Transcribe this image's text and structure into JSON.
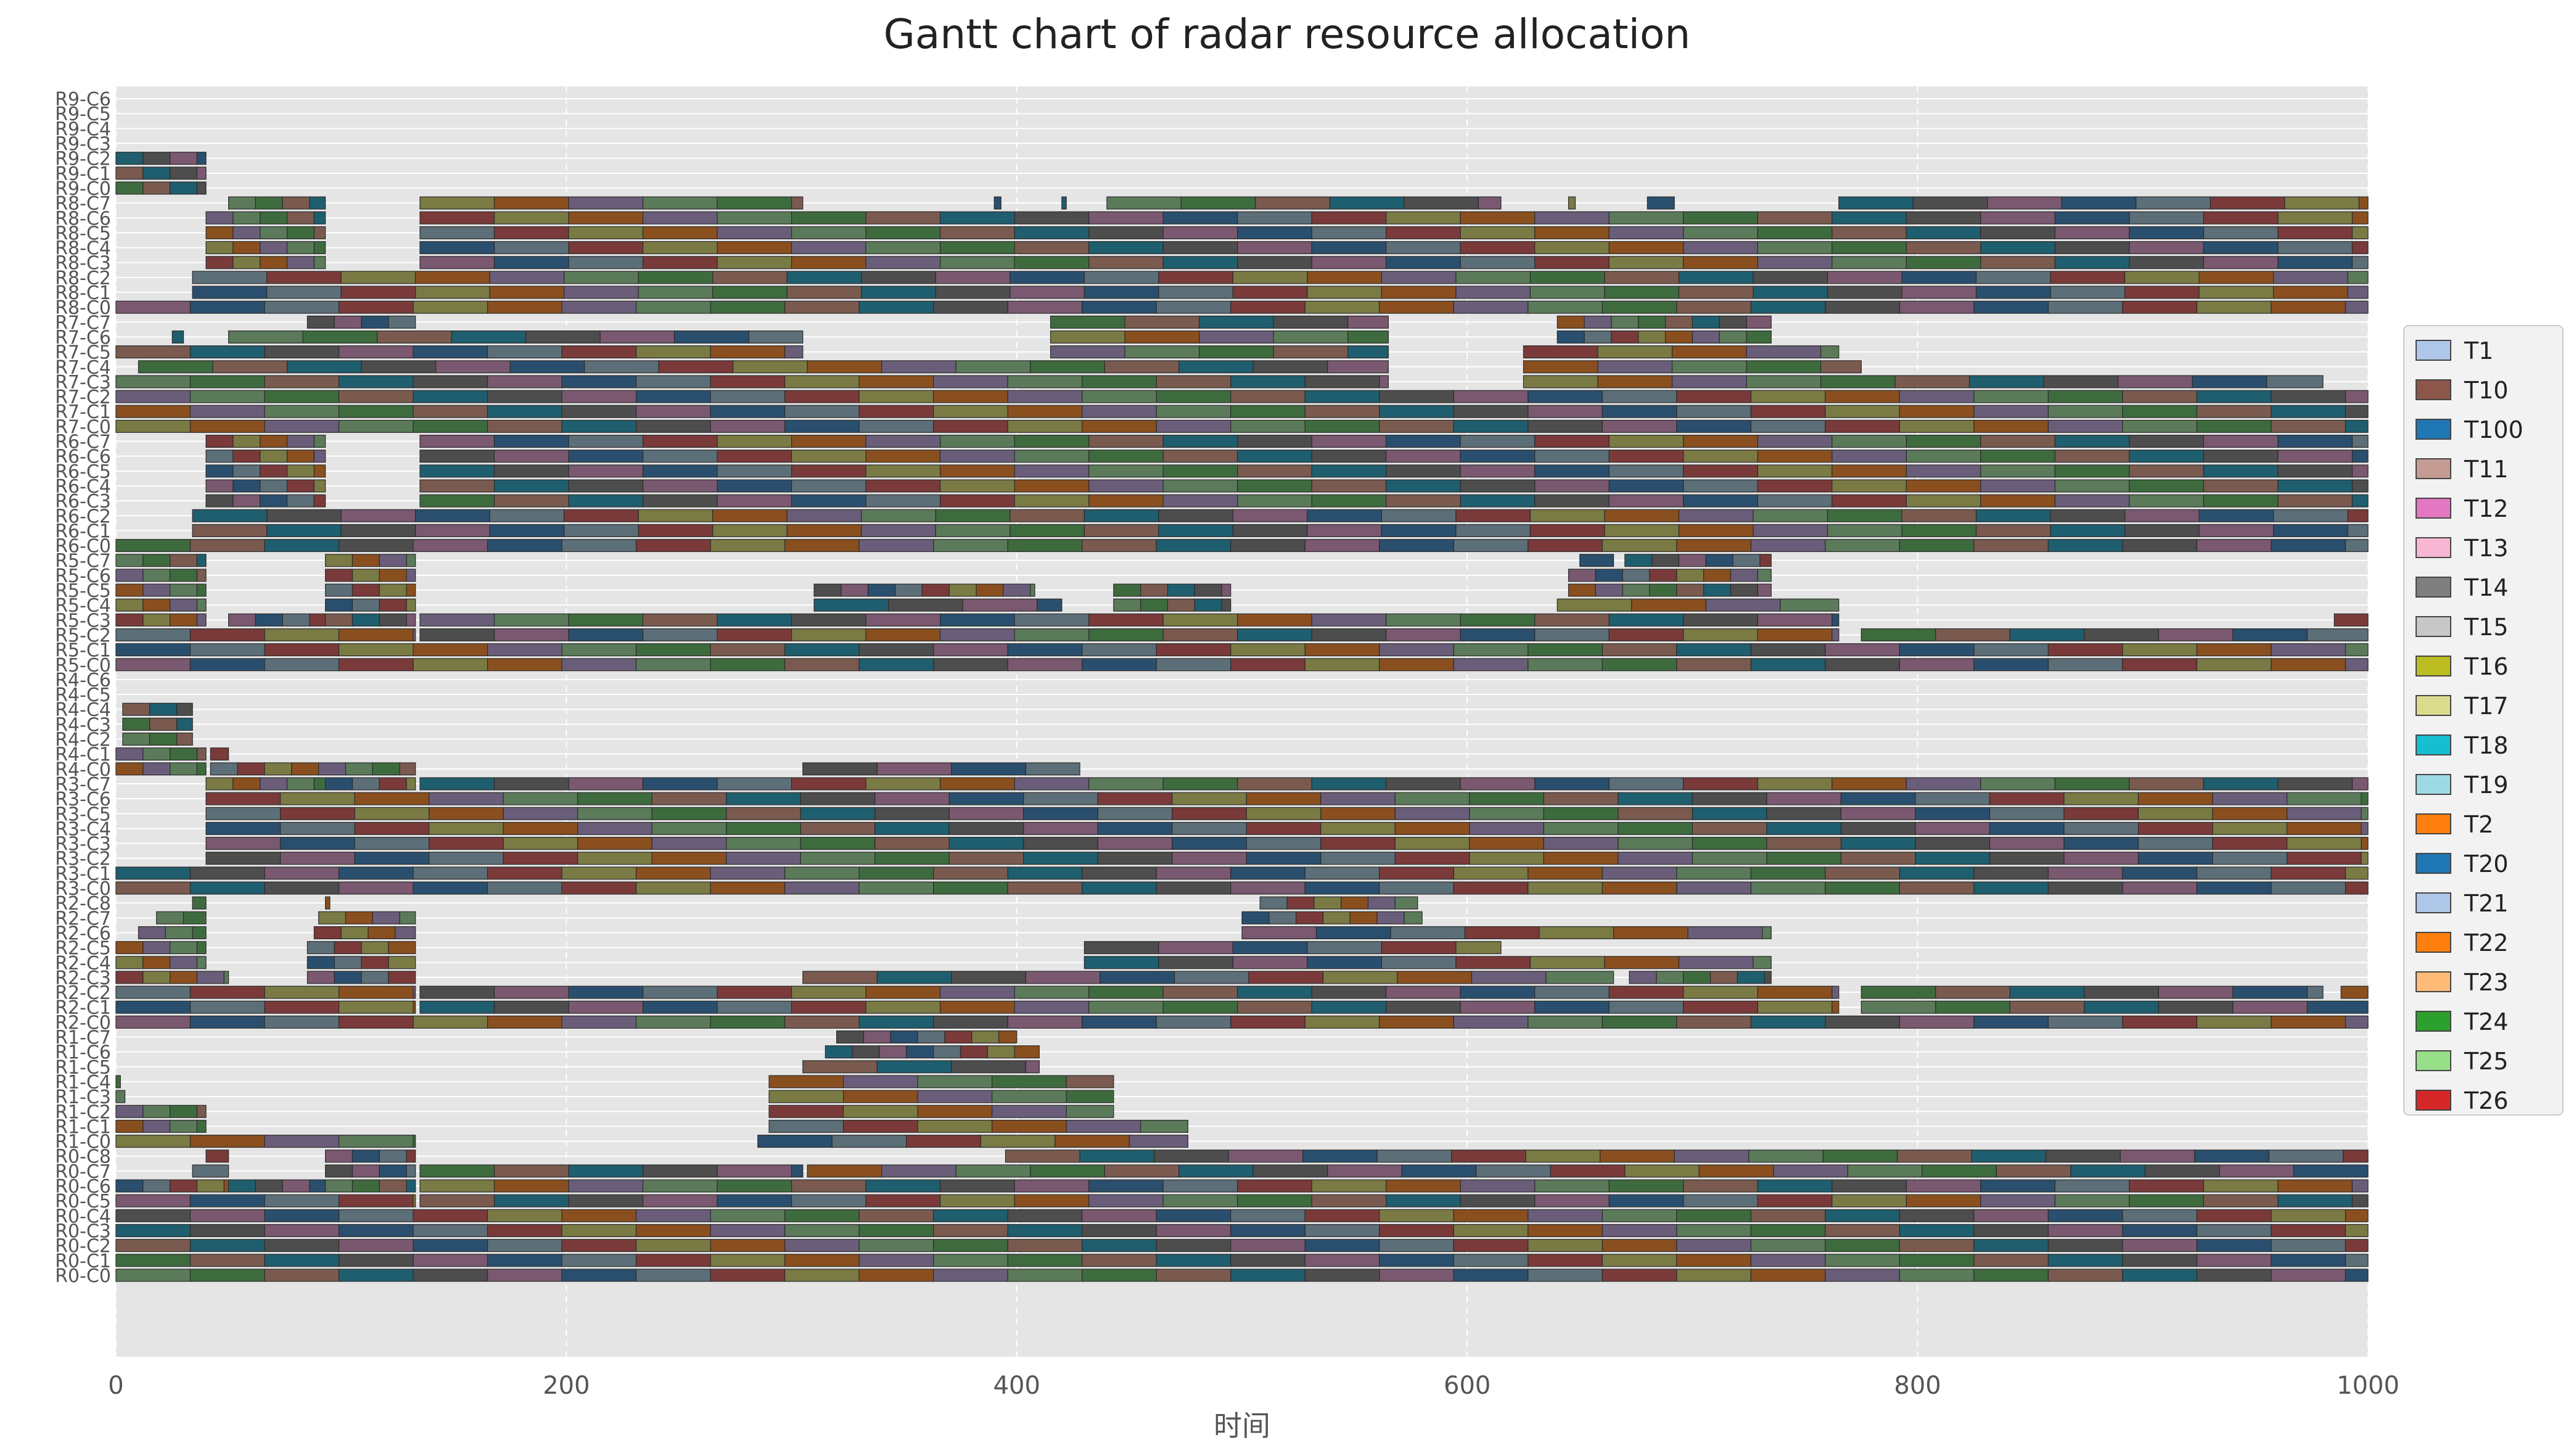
{
  "chart_data": {
    "type": "gantt",
    "title": "Gantt chart of radar resource allocation",
    "xlabel": "时间",
    "ylabel": "",
    "xlim": [
      0,
      1000
    ],
    "xticks": [
      0,
      200,
      400,
      600,
      800,
      1000
    ],
    "grid": true,
    "legend_position": "right",
    "radars": [
      {
        "name": "R0",
        "channels": 9
      },
      {
        "name": "R1",
        "channels": 8
      },
      {
        "name": "R2",
        "channels": 9
      },
      {
        "name": "R3",
        "channels": 8
      },
      {
        "name": "R4",
        "channels": 7
      },
      {
        "name": "R5",
        "channels": 8
      },
      {
        "name": "R6",
        "channels": 8
      },
      {
        "name": "R7",
        "channels": 8
      },
      {
        "name": "R8",
        "channels": 8
      },
      {
        "name": "R9",
        "channels": 7
      }
    ],
    "legend": [
      {
        "task": "T1",
        "color": "#aec7e8"
      },
      {
        "task": "T10",
        "color": "#8c564b"
      },
      {
        "task": "T100",
        "color": "#1f77b4"
      },
      {
        "task": "T11",
        "color": "#c49c94"
      },
      {
        "task": "T12",
        "color": "#e377c2"
      },
      {
        "task": "T13",
        "color": "#f7b6d2"
      },
      {
        "task": "T14",
        "color": "#7f7f7f"
      },
      {
        "task": "T15",
        "color": "#c7c7c7"
      },
      {
        "task": "T16",
        "color": "#bcbd22"
      },
      {
        "task": "T17",
        "color": "#dbdb8d"
      },
      {
        "task": "T18",
        "color": "#17becf"
      },
      {
        "task": "T19",
        "color": "#9edae5"
      },
      {
        "task": "T2",
        "color": "#ff7f0e"
      },
      {
        "task": "T20",
        "color": "#1f77b4"
      },
      {
        "task": "T21",
        "color": "#aec7e8"
      },
      {
        "task": "T22",
        "color": "#ff7f0e"
      },
      {
        "task": "T23",
        "color": "#ffbb78"
      },
      {
        "task": "T24",
        "color": "#2ca02c"
      },
      {
        "task": "T25",
        "color": "#98df8a"
      },
      {
        "task": "T26",
        "color": "#d62728"
      }
    ],
    "bar_palette": [
      "#5c6e78",
      "#7a5a4f",
      "#7a7a44",
      "#4d4d4d",
      "#6a5d7a",
      "#2a4f6e",
      "#3e6b3e",
      "#7a3a3a",
      "#1f5e6e",
      "#8a4f1f",
      "#7a5870",
      "#5b7a5a"
    ],
    "allocations": [
      {
        "row": "R0-C8",
        "segments": [
          [
            40,
            50
          ],
          [
            93,
            133
          ],
          [
            395,
            1000
          ]
        ]
      },
      {
        "row": "R0-C7",
        "segments": [
          [
            34,
            50
          ],
          [
            93,
            133
          ],
          [
            135,
            305
          ],
          [
            307,
            1000
          ]
        ]
      },
      {
        "row": "R0-C6",
        "segments": [
          [
            0,
            50
          ],
          [
            50,
            93
          ],
          [
            93,
            133
          ],
          [
            135,
            1000
          ]
        ]
      },
      {
        "row": "R0-C5",
        "segments": [
          [
            0,
            133
          ],
          [
            135,
            1000
          ]
        ]
      },
      {
        "row": "R0-C4",
        "segments": [
          [
            0,
            1000
          ]
        ]
      },
      {
        "row": "R0-C3",
        "segments": [
          [
            0,
            1000
          ]
        ]
      },
      {
        "row": "R0-C2",
        "segments": [
          [
            0,
            1000
          ]
        ]
      },
      {
        "row": "R0-C1",
        "segments": [
          [
            0,
            1000
          ]
        ]
      },
      {
        "row": "R0-C0",
        "segments": [
          [
            0,
            1000
          ]
        ]
      },
      {
        "row": "R1-C7",
        "segments": [
          [
            320,
            400
          ]
        ]
      },
      {
        "row": "R1-C6",
        "segments": [
          [
            315,
            410
          ]
        ]
      },
      {
        "row": "R1-C5",
        "segments": [
          [
            305,
            410
          ]
        ]
      },
      {
        "row": "R1-C4",
        "segments": [
          [
            0,
            2
          ],
          [
            290,
            443
          ]
        ]
      },
      {
        "row": "R1-C3",
        "segments": [
          [
            0,
            4
          ],
          [
            290,
            443
          ]
        ]
      },
      {
        "row": "R1-C2",
        "segments": [
          [
            0,
            40
          ],
          [
            290,
            443
          ]
        ]
      },
      {
        "row": "R1-C1",
        "segments": [
          [
            0,
            40
          ],
          [
            290,
            476
          ]
        ]
      },
      {
        "row": "R1-C0",
        "segments": [
          [
            0,
            133
          ],
          [
            285,
            476
          ]
        ]
      },
      {
        "row": "R2-C8",
        "segments": [
          [
            34,
            40
          ],
          [
            93,
            95
          ],
          [
            508,
            578
          ]
        ]
      },
      {
        "row": "R2-C7",
        "segments": [
          [
            18,
            40
          ],
          [
            90,
            133
          ],
          [
            500,
            580
          ]
        ]
      },
      {
        "row": "R2-C6",
        "segments": [
          [
            10,
            40
          ],
          [
            88,
            133
          ],
          [
            500,
            735
          ]
        ]
      },
      {
        "row": "R2-C5",
        "segments": [
          [
            0,
            40
          ],
          [
            85,
            133
          ],
          [
            430,
            615
          ]
        ]
      },
      {
        "row": "R2-C4",
        "segments": [
          [
            0,
            40
          ],
          [
            85,
            133
          ],
          [
            430,
            735
          ]
        ]
      },
      {
        "row": "R2-C3",
        "segments": [
          [
            0,
            50
          ],
          [
            85,
            133
          ],
          [
            305,
            665
          ],
          [
            672,
            735
          ]
        ]
      },
      {
        "row": "R2-C2",
        "segments": [
          [
            0,
            133
          ],
          [
            135,
            765
          ],
          [
            775,
            980
          ],
          [
            988,
            1000
          ]
        ]
      },
      {
        "row": "R2-C1",
        "segments": [
          [
            0,
            133
          ],
          [
            135,
            765
          ],
          [
            775,
            1000
          ]
        ]
      },
      {
        "row": "R2-C0",
        "segments": [
          [
            0,
            1000
          ]
        ]
      },
      {
        "row": "R3-C7",
        "segments": [
          [
            40,
            93
          ],
          [
            93,
            133
          ],
          [
            135,
            1000
          ]
        ]
      },
      {
        "row": "R3-C6",
        "segments": [
          [
            40,
            1000
          ]
        ]
      },
      {
        "row": "R3-C5",
        "segments": [
          [
            40,
            1000
          ]
        ]
      },
      {
        "row": "R3-C4",
        "segments": [
          [
            40,
            1000
          ]
        ]
      },
      {
        "row": "R3-C3",
        "segments": [
          [
            40,
            1000
          ]
        ]
      },
      {
        "row": "R3-C2",
        "segments": [
          [
            40,
            1000
          ]
        ]
      },
      {
        "row": "R3-C1",
        "segments": [
          [
            0,
            1000
          ]
        ]
      },
      {
        "row": "R3-C0",
        "segments": [
          [
            0,
            1000
          ]
        ]
      },
      {
        "row": "R4-C6",
        "segments": []
      },
      {
        "row": "R4-C5",
        "segments": []
      },
      {
        "row": "R4-C4",
        "segments": [
          [
            3,
            34
          ]
        ]
      },
      {
        "row": "R4-C3",
        "segments": [
          [
            3,
            34
          ]
        ]
      },
      {
        "row": "R4-C2",
        "segments": [
          [
            3,
            34
          ]
        ]
      },
      {
        "row": "R4-C1",
        "segments": [
          [
            0,
            40
          ],
          [
            42,
            50
          ]
        ]
      },
      {
        "row": "R4-C0",
        "segments": [
          [
            0,
            40
          ],
          [
            42,
            133
          ],
          [
            305,
            428
          ]
        ]
      },
      {
        "row": "R5-C7",
        "segments": [
          [
            0,
            40
          ],
          [
            93,
            133
          ],
          [
            650,
            665
          ],
          [
            670,
            735
          ]
        ]
      },
      {
        "row": "R5-C6",
        "segments": [
          [
            0,
            40
          ],
          [
            93,
            133
          ],
          [
            645,
            735
          ]
        ]
      },
      {
        "row": "R5-C5",
        "segments": [
          [
            0,
            40
          ],
          [
            93,
            133
          ],
          [
            310,
            408
          ],
          [
            443,
            495
          ],
          [
            645,
            735
          ]
        ]
      },
      {
        "row": "R5-C4",
        "segments": [
          [
            0,
            40
          ],
          [
            93,
            133
          ],
          [
            310,
            420
          ],
          [
            443,
            495
          ],
          [
            640,
            765
          ]
        ]
      },
      {
        "row": "R5-C3",
        "segments": [
          [
            0,
            40
          ],
          [
            50,
            93
          ],
          [
            93,
            133
          ],
          [
            135,
            765
          ],
          [
            985,
            1000
          ]
        ]
      },
      {
        "row": "R5-C2",
        "segments": [
          [
            0,
            133
          ],
          [
            135,
            765
          ],
          [
            775,
            1000
          ]
        ]
      },
      {
        "row": "R5-C1",
        "segments": [
          [
            0,
            1000
          ]
        ]
      },
      {
        "row": "R5-C0",
        "segments": [
          [
            0,
            1000
          ]
        ]
      },
      {
        "row": "R6-C7",
        "segments": [
          [
            40,
            93
          ],
          [
            135,
            1000
          ]
        ]
      },
      {
        "row": "R6-C6",
        "segments": [
          [
            40,
            93
          ],
          [
            135,
            1000
          ]
        ]
      },
      {
        "row": "R6-C5",
        "segments": [
          [
            40,
            93
          ],
          [
            135,
            1000
          ]
        ]
      },
      {
        "row": "R6-C4",
        "segments": [
          [
            40,
            93
          ],
          [
            135,
            1000
          ]
        ]
      },
      {
        "row": "R6-C3",
        "segments": [
          [
            40,
            93
          ],
          [
            135,
            1000
          ]
        ]
      },
      {
        "row": "R6-C2",
        "segments": [
          [
            34,
            1000
          ]
        ]
      },
      {
        "row": "R6-C1",
        "segments": [
          [
            34,
            1000
          ]
        ]
      },
      {
        "row": "R6-C0",
        "segments": [
          [
            0,
            1000
          ]
        ]
      },
      {
        "row": "R7-C7",
        "segments": [
          [
            85,
            133
          ],
          [
            415,
            565
          ],
          [
            640,
            735
          ]
        ]
      },
      {
        "row": "R7-C6",
        "segments": [
          [
            25,
            30
          ],
          [
            50,
            305
          ],
          [
            415,
            565
          ],
          [
            640,
            735
          ]
        ]
      },
      {
        "row": "R7-C5",
        "segments": [
          [
            0,
            305
          ],
          [
            415,
            565
          ],
          [
            625,
            765
          ]
        ]
      },
      {
        "row": "R7-C4",
        "segments": [
          [
            10,
            565
          ],
          [
            625,
            775
          ]
        ]
      },
      {
        "row": "R7-C3",
        "segments": [
          [
            0,
            565
          ],
          [
            625,
            980
          ]
        ]
      },
      {
        "row": "R7-C2",
        "segments": [
          [
            0,
            1000
          ]
        ]
      },
      {
        "row": "R7-C1",
        "segments": [
          [
            0,
            1000
          ]
        ]
      },
      {
        "row": "R7-C0",
        "segments": [
          [
            0,
            1000
          ]
        ]
      },
      {
        "row": "R8-C7",
        "segments": [
          [
            50,
            93
          ],
          [
            135,
            305
          ],
          [
            390,
            393
          ],
          [
            420,
            422
          ],
          [
            440,
            615
          ],
          [
            645,
            648
          ],
          [
            680,
            692
          ],
          [
            765,
            1000
          ]
        ]
      },
      {
        "row": "R8-C6",
        "segments": [
          [
            40,
            93
          ],
          [
            135,
            1000
          ]
        ]
      },
      {
        "row": "R8-C5",
        "segments": [
          [
            40,
            93
          ],
          [
            135,
            1000
          ]
        ]
      },
      {
        "row": "R8-C4",
        "segments": [
          [
            40,
            93
          ],
          [
            135,
            1000
          ]
        ]
      },
      {
        "row": "R8-C3",
        "segments": [
          [
            40,
            93
          ],
          [
            135,
            1000
          ]
        ]
      },
      {
        "row": "R8-C2",
        "segments": [
          [
            34,
            1000
          ]
        ]
      },
      {
        "row": "R8-C1",
        "segments": [
          [
            34,
            1000
          ]
        ]
      },
      {
        "row": "R8-C0",
        "segments": [
          [
            0,
            1000
          ]
        ]
      },
      {
        "row": "R9-C6",
        "segments": []
      },
      {
        "row": "R9-C5",
        "segments": []
      },
      {
        "row": "R9-C4",
        "segments": []
      },
      {
        "row": "R9-C3",
        "segments": []
      },
      {
        "row": "R9-C2",
        "segments": [
          [
            0,
            40
          ]
        ]
      },
      {
        "row": "R9-C1",
        "segments": [
          [
            0,
            40
          ]
        ]
      },
      {
        "row": "R9-C0",
        "segments": [
          [
            0,
            40
          ]
        ]
      }
    ]
  }
}
